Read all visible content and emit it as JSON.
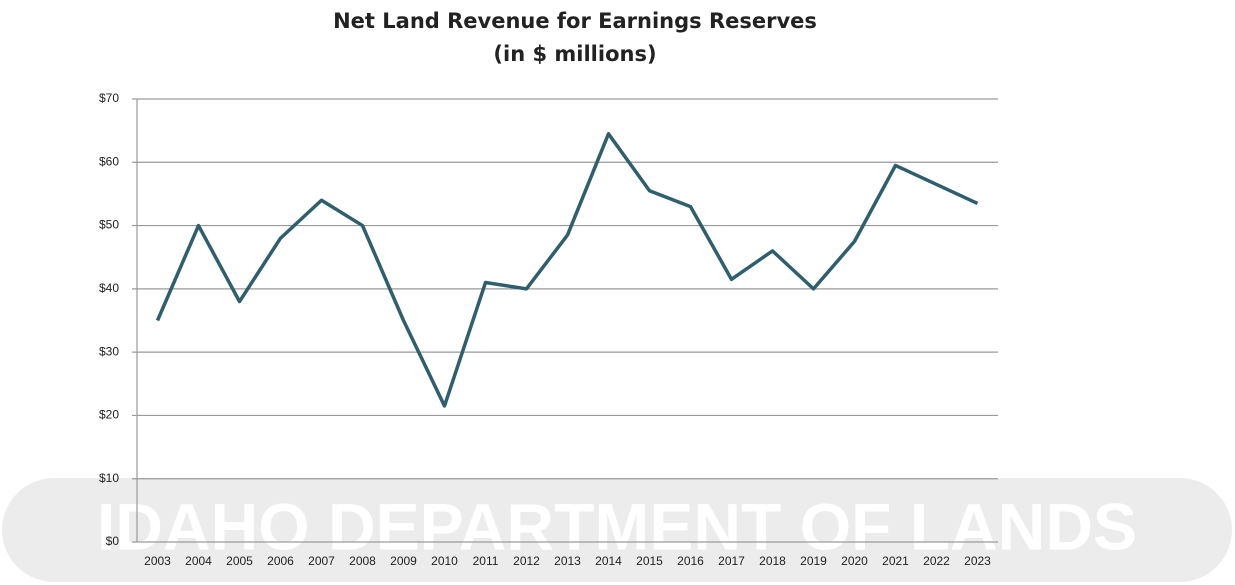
{
  "chart_data": {
    "type": "line",
    "title": "Net Land Revenue for Earnings Reserves",
    "subtitle": "(in $ millions)",
    "watermark": "IDAHO DEPARTMENT OF LANDS",
    "categories": [
      "2003",
      "2004",
      "2005",
      "2006",
      "2007",
      "2008",
      "2009",
      "2010",
      "2011",
      "2012",
      "2013",
      "2014",
      "2015",
      "2016",
      "2017",
      "2018",
      "2019",
      "2020",
      "2021",
      "2022",
      "2023"
    ],
    "values": [
      35,
      50,
      38,
      48,
      54,
      50,
      35,
      21.5,
      41,
      40,
      48.5,
      64.5,
      55.5,
      53,
      41.5,
      46,
      40,
      47.5,
      59.5,
      56.5,
      53.5
    ],
    "color": "#2f5f6d",
    "ylim": [
      0,
      70
    ],
    "yticks": [
      {
        "value": 0,
        "label": "$0"
      },
      {
        "value": 10,
        "label": "$10"
      },
      {
        "value": 20,
        "label": "$20"
      },
      {
        "value": 30,
        "label": "$30"
      },
      {
        "value": 40,
        "label": "$40"
      },
      {
        "value": 50,
        "label": "$50"
      },
      {
        "value": 60,
        "label": "$60"
      },
      {
        "value": 70,
        "label": "$70"
      }
    ],
    "grid": true
  }
}
